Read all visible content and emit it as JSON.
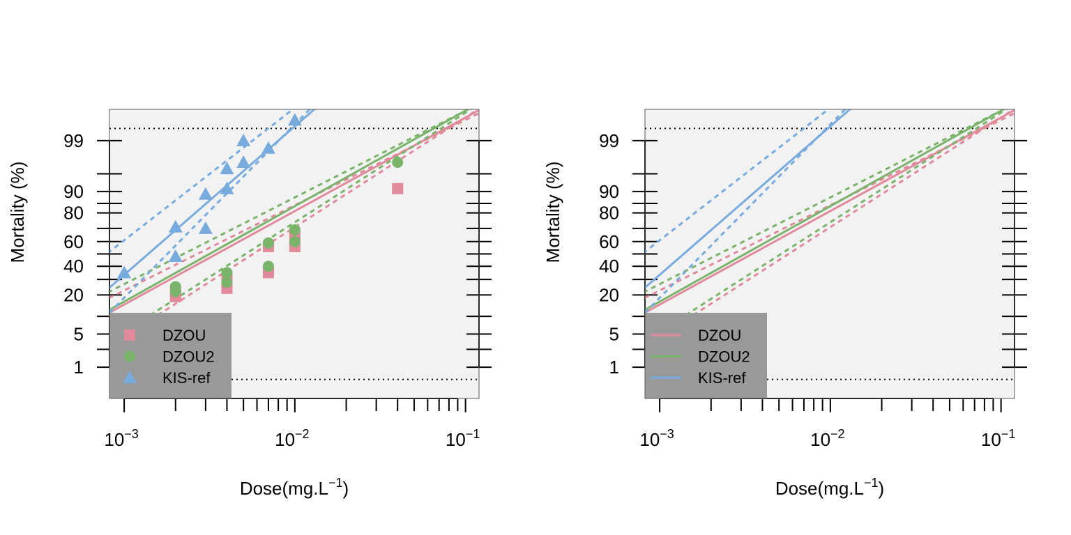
{
  "colors": {
    "DZOU": "#e08a9c",
    "DZOU2": "#7ab36a",
    "KIS-ref": "#77aadd",
    "panel_bg": "#f2f2f2",
    "legend_bg": "#999999"
  },
  "chart_data": [
    {
      "type": "scatter",
      "title": "",
      "xlabel": "Dose(mg.L",
      "xlabel_superscript": "−1",
      "xlabel_close": ")",
      "ylabel": "Mortality (%)",
      "x_scale": "log10",
      "y_scale": "probit",
      "xlim": [
        0.00082,
        0.12
      ],
      "ylim_percent": [
        0.15,
        99.85
      ],
      "x_ticks": [
        {
          "value": 0.001,
          "base": "10",
          "exp": "−3"
        },
        {
          "value": 0.01,
          "base": "10",
          "exp": "−2"
        },
        {
          "value": 0.1,
          "base": "10",
          "exp": "−1"
        }
      ],
      "y_ticks": [
        "1",
        "5",
        "20",
        "40",
        "60",
        "80",
        "90",
        "99"
      ],
      "y_tick_values": [
        1,
        5,
        20,
        40,
        60,
        80,
        90,
        99
      ],
      "y_minor_ticks": [
        2.5,
        10,
        30,
        50,
        70,
        85,
        95
      ],
      "reference_lines_percent": [
        0.5,
        99.5
      ],
      "legend_position": "bottom-left",
      "legend_style": "points",
      "series": [
        {
          "name": "DZOU",
          "marker": "square",
          "points": [
            {
              "x": 0.002,
              "y": 19
            },
            {
              "x": 0.002,
              "y": 21
            },
            {
              "x": 0.004,
              "y": 24
            },
            {
              "x": 0.004,
              "y": 31
            },
            {
              "x": 0.007,
              "y": 35
            },
            {
              "x": 0.007,
              "y": 56
            },
            {
              "x": 0.01,
              "y": 56
            },
            {
              "x": 0.01,
              "y": 65
            },
            {
              "x": 0.04,
              "y": 91
            }
          ],
          "fit": {
            "intercept": 4.72,
            "slope": 1.92
          },
          "ci_lower": {
            "intercept": 5.05,
            "slope": 2.25
          },
          "ci_upper": {
            "intercept": 4.5,
            "slope": 1.75
          }
        },
        {
          "name": "DZOU2",
          "marker": "circle",
          "points": [
            {
              "x": 0.002,
              "y": 22
            },
            {
              "x": 0.002,
              "y": 25
            },
            {
              "x": 0.004,
              "y": 28
            },
            {
              "x": 0.004,
              "y": 35
            },
            {
              "x": 0.007,
              "y": 40
            },
            {
              "x": 0.007,
              "y": 59
            },
            {
              "x": 0.01,
              "y": 60
            },
            {
              "x": 0.01,
              "y": 69
            },
            {
              "x": 0.04,
              "y": 97
            }
          ],
          "fit": {
            "intercept": 4.9,
            "slope": 1.96
          },
          "ci_lower": {
            "intercept": 5.15,
            "slope": 2.25
          },
          "ci_upper": {
            "intercept": 4.72,
            "slope": 1.78
          }
        },
        {
          "name": "KIS-ref",
          "marker": "triangle",
          "points": [
            {
              "x": 0.001,
              "y": 35
            },
            {
              "x": 0.002,
              "y": 48
            },
            {
              "x": 0.002,
              "y": 71
            },
            {
              "x": 0.003,
              "y": 70
            },
            {
              "x": 0.003,
              "y": 89
            },
            {
              "x": 0.004,
              "y": 91
            },
            {
              "x": 0.004,
              "y": 96
            },
            {
              "x": 0.005,
              "y": 97
            },
            {
              "x": 0.005,
              "y": 99
            },
            {
              "x": 0.007,
              "y": 98.5
            },
            {
              "x": 0.01,
              "y": 99.7
            }
          ],
          "fit": {
            "intercept": 8.72,
            "slope": 3.05
          },
          "ci_lower": {
            "intercept": 9.78,
            "slope": 3.56
          },
          "ci_upper": {
            "intercept": 8.44,
            "slope": 2.72
          }
        }
      ]
    },
    {
      "type": "line",
      "title": "",
      "xlabel": "Dose(mg.L",
      "xlabel_superscript": "−1",
      "xlabel_close": ")",
      "ylabel": "Mortality (%)",
      "x_scale": "log10",
      "y_scale": "probit",
      "xlim": [
        0.00082,
        0.12
      ],
      "ylim_percent": [
        0.15,
        99.85
      ],
      "x_ticks": [
        {
          "value": 0.001,
          "base": "10",
          "exp": "−3"
        },
        {
          "value": 0.01,
          "base": "10",
          "exp": "−2"
        },
        {
          "value": 0.1,
          "base": "10",
          "exp": "−1"
        }
      ],
      "y_ticks": [
        "1",
        "5",
        "20",
        "40",
        "60",
        "80",
        "90",
        "99"
      ],
      "y_tick_values": [
        1,
        5,
        20,
        40,
        60,
        80,
        90,
        99
      ],
      "y_minor_ticks": [
        2.5,
        10,
        30,
        50,
        70,
        85,
        95
      ],
      "reference_lines_percent": [
        0.5,
        99.5
      ],
      "legend_position": "bottom-left",
      "legend_style": "lines",
      "series": [
        {
          "name": "DZOU",
          "points": [],
          "fit": {
            "intercept": 4.72,
            "slope": 1.92
          },
          "ci_lower": {
            "intercept": 5.05,
            "slope": 2.25
          },
          "ci_upper": {
            "intercept": 4.5,
            "slope": 1.75
          }
        },
        {
          "name": "DZOU2",
          "points": [],
          "fit": {
            "intercept": 4.9,
            "slope": 1.96
          },
          "ci_lower": {
            "intercept": 5.15,
            "slope": 2.25
          },
          "ci_upper": {
            "intercept": 4.72,
            "slope": 1.78
          }
        },
        {
          "name": "KIS-ref",
          "points": [],
          "fit": {
            "intercept": 8.72,
            "slope": 3.05
          },
          "ci_lower": {
            "intercept": 9.78,
            "slope": 3.56
          },
          "ci_upper": {
            "intercept": 8.44,
            "slope": 2.72
          }
        }
      ]
    }
  ]
}
